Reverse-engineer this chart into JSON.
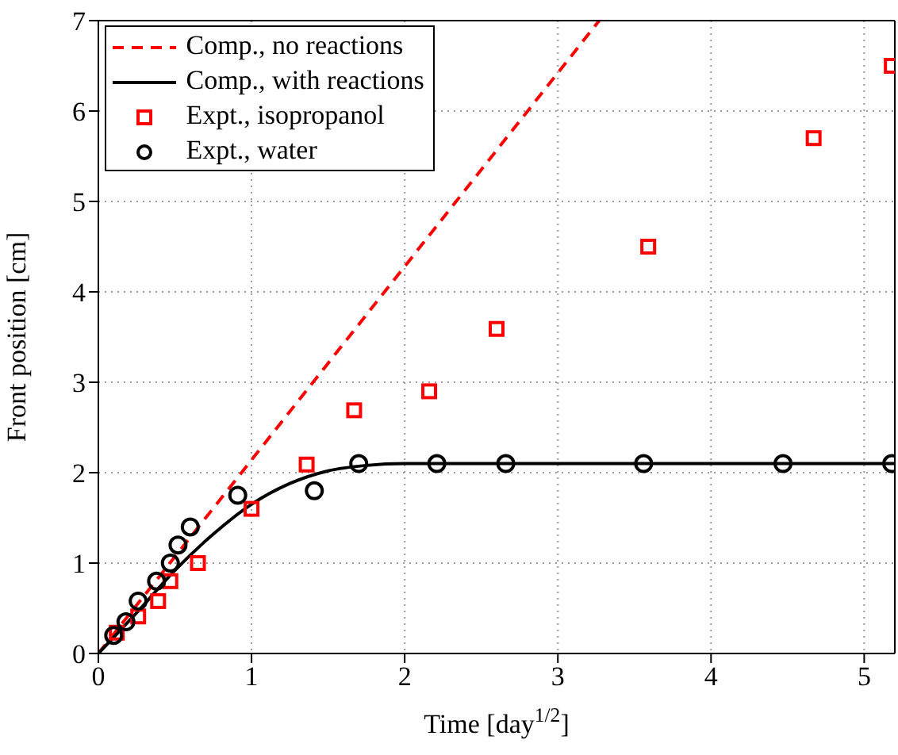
{
  "chart_data": {
    "type": "line",
    "xlabel": "Time [day$^{1/2}$]",
    "ylabel": "Front position [cm]",
    "xlim": [
      0,
      5.2
    ],
    "ylim": [
      0,
      7
    ],
    "xticks": [
      0,
      1,
      2,
      3,
      4,
      5
    ],
    "yticks": [
      0,
      1,
      2,
      3,
      4,
      5,
      6,
      7
    ],
    "grid": true,
    "legend": "top left",
    "series": [
      {
        "name": "Comp., no reactions",
        "line_style": "dashed",
        "marker": "none",
        "color": "#ff0000",
        "x": [
          0,
          3.27
        ],
        "values": [
          0,
          7
        ]
      },
      {
        "name": "Comp., with reactions",
        "line_style": "solid",
        "marker": "none",
        "color": "#000000",
        "x": [
          0,
          0.25,
          0.5,
          0.75,
          1,
          1.25,
          1.5,
          1.75,
          2,
          2.5,
          3,
          4,
          5.2
        ],
        "values": [
          0,
          0.45,
          0.92,
          1.32,
          1.65,
          1.88,
          2.02,
          2.08,
          2.1,
          2.1,
          2.1,
          2.1,
          2.1
        ]
      },
      {
        "name": "Expt., isopropanol",
        "type": "scatter",
        "marker": "square",
        "color": "#ff0000",
        "x": [
          0.12,
          0.26,
          0.39,
          0.47,
          0.65,
          1.0,
          1.36,
          1.67,
          2.16,
          2.6,
          3.59,
          4.67,
          5.18
        ],
        "values": [
          0.23,
          0.41,
          0.58,
          0.8,
          1.0,
          1.6,
          2.09,
          2.69,
          2.9,
          3.59,
          4.5,
          5.7,
          6.5
        ]
      },
      {
        "name": "Expt., water",
        "type": "scatter",
        "marker": "circle",
        "color": "#000000",
        "x": [
          0.1,
          0.18,
          0.26,
          0.38,
          0.47,
          0.52,
          0.6,
          0.91,
          1.41,
          1.7,
          2.21,
          2.66,
          3.56,
          4.47,
          5.18
        ],
        "values": [
          0.2,
          0.35,
          0.58,
          0.8,
          1.0,
          1.2,
          1.4,
          1.75,
          1.8,
          2.1,
          2.1,
          2.1,
          2.1,
          2.1,
          2.1
        ]
      }
    ]
  }
}
